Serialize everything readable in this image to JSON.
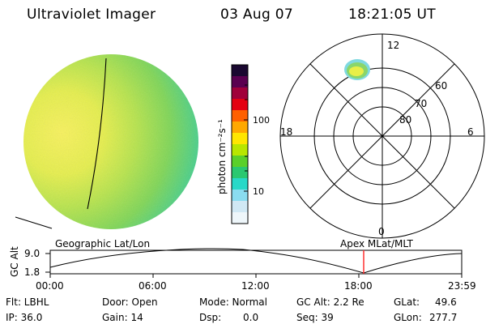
{
  "header": {
    "instrument": "Ultraviolet Imager",
    "date": "03 Aug 07",
    "time": "18:21:05 UT"
  },
  "colorbar": {
    "label": "photon cm⁻²s⁻¹",
    "tick_labels": [
      "100",
      "10"
    ],
    "colors": [
      "#1a0830",
      "#5a0050",
      "#a0003a",
      "#e40012",
      "#ff6000",
      "#ffa800",
      "#ffe600",
      "#b8e600",
      "#5ad02a",
      "#2ac870",
      "#28d8c8",
      "#8adcf0",
      "#d0e8f4",
      "#eef6fa"
    ]
  },
  "polar_plot": {
    "mlt_labels": [
      "12",
      "18",
      "6",
      "0"
    ],
    "lat_labels": [
      "60",
      "70",
      "80"
    ]
  },
  "timeline": {
    "left_label": "Geographic Lat/Lon",
    "right_label": "Apex MLat/MLT",
    "y_axis_label": "GC Alt",
    "y_ticks": [
      "9.0",
      "1.8"
    ],
    "x_ticks": [
      "00:00",
      "06:00",
      "12:00",
      "18:00",
      "23:59"
    ],
    "marker_color": "#ff3030"
  },
  "info": {
    "flt": "Flt: LBHL",
    "ip": "IP: 36.0",
    "door": "Door: Open",
    "gain": "Gain: 14",
    "mode": "Mode: Normal",
    "dsp": "Dsp:",
    "dsp_value": "0.0",
    "gc_alt": "GC Alt: 2.2 Re",
    "seq": "Seq: 39",
    "glat_label": "GLat:",
    "glat_value": "49.6",
    "glon_label": "GLon:",
    "glon_value": "277.7"
  }
}
